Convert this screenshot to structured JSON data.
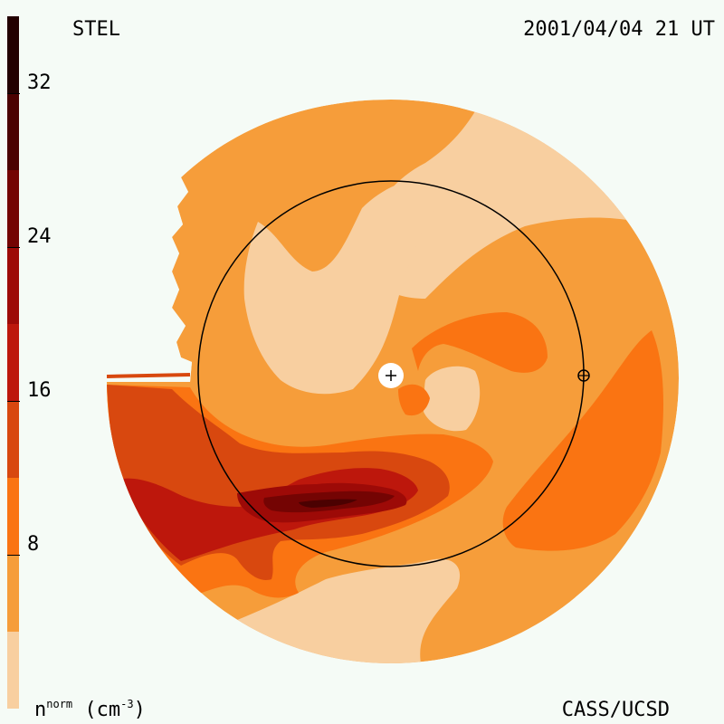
{
  "header": {
    "left_label": "STEL",
    "right_label": "2001/04/04 21 UT"
  },
  "footer": {
    "unit_base": "n",
    "unit_sup": "norm",
    "unit_paren_open": "(cm",
    "unit_exp": "-3",
    "unit_paren_close": ")",
    "credit": "CASS/UCSD"
  },
  "chart_data": {
    "type": "heatmap",
    "title": "",
    "colorbar": {
      "min": 0,
      "max": 36,
      "tick_values": [
        8,
        16,
        24,
        32
      ],
      "tick_labels": [
        "8",
        "16",
        "24",
        "32"
      ],
      "levels": [
        {
          "from": 0,
          "to": 4,
          "color": "#f8cfa0"
        },
        {
          "from": 4,
          "to": 8,
          "color": "#f69d3a"
        },
        {
          "from": 8,
          "to": 12,
          "color": "#fa7412"
        },
        {
          "from": 12,
          "to": 16,
          "color": "#d8480f"
        },
        {
          "from": 16,
          "to": 20,
          "color": "#bd170c"
        },
        {
          "from": 20,
          "to": 24,
          "color": "#9d0a07"
        },
        {
          "from": 24,
          "to": 28,
          "color": "#740403"
        },
        {
          "from": 28,
          "to": 32,
          "color": "#4b0101"
        },
        {
          "from": 32,
          "to": 36,
          "color": "#220000"
        }
      ]
    },
    "markers": {
      "sun": "+",
      "earth": "⊕"
    }
  }
}
